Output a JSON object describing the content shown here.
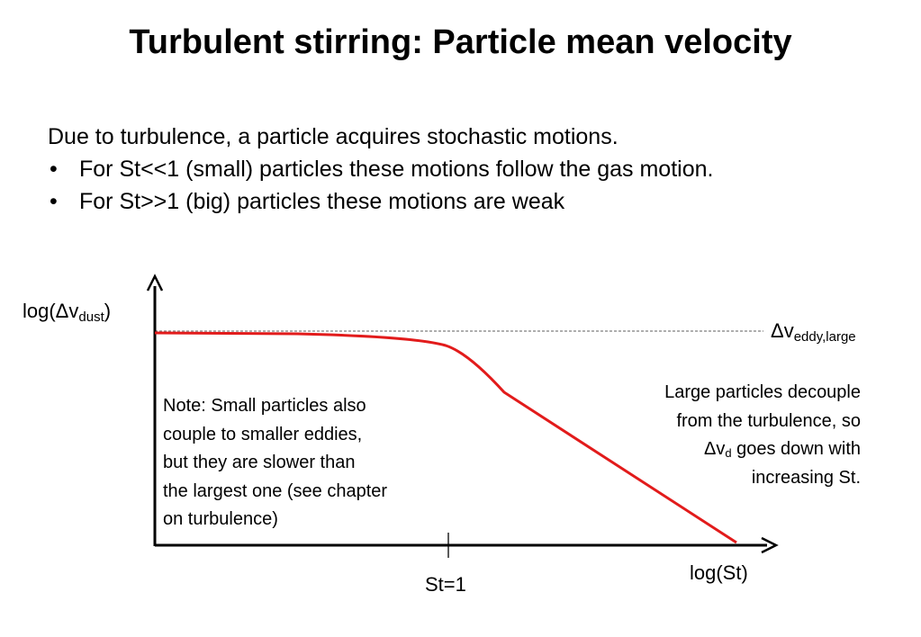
{
  "slide": {
    "title": "Turbulent stirring: Particle mean velocity",
    "intro": "Due to turbulence, a particle acquires stochastic motions.",
    "bullets": [
      "For St<<1 (small) particles these motions follow the gas motion.",
      "For St>>1 (big) particles these motions are weak"
    ],
    "bullet_symbol": "•"
  },
  "diagram": {
    "y_axis_label": {
      "prefix": "log(Δv",
      "subscript": "dust",
      "suffix": ")"
    },
    "x_axis_label": "log(St)",
    "tick_label": "St=1",
    "reference_line_label": {
      "main": "Δv",
      "subscript": "eddy,large"
    },
    "note_left": [
      "Note: Small particles also",
      "couple to smaller eddies,",
      "but they are slower than",
      "the largest one (see chapter",
      "on turbulence)"
    ],
    "note_right": {
      "line1": "Large particles decouple",
      "line2": "from the turbulence, so",
      "line3_main": "Δv",
      "line3_sub": "d",
      "line3_rest": " goes down with",
      "line4": "increasing St."
    },
    "colors": {
      "curve": "#e21b1b",
      "axes": "#000000",
      "reference_line": "#7f7f7f"
    }
  }
}
